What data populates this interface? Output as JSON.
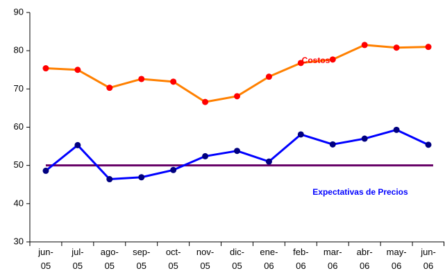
{
  "chart_data": {
    "type": "line",
    "categories": [
      "jun-05",
      "jul-05",
      "ago-05",
      "sep-05",
      "oct-05",
      "nov-05",
      "dic-05",
      "ene-06",
      "feb-06",
      "mar-06",
      "abr-06",
      "may-06",
      "jun-06"
    ],
    "series": [
      {
        "name": "Costos",
        "color": "#ff8000",
        "marker_color": "#ff0000",
        "label_color": "#ff0000",
        "values": [
          75.4,
          75.0,
          70.3,
          72.6,
          71.9,
          66.6,
          68.1,
          73.2,
          76.8,
          77.7,
          81.5,
          80.8,
          81.0
        ]
      },
      {
        "name": "Expectativas de Precios",
        "color": "#0000ff",
        "marker_color": "#000080",
        "label_color": "#0000ff",
        "values": [
          48.6,
          55.3,
          46.4,
          46.9,
          48.8,
          52.4,
          53.8,
          51.0,
          58.1,
          55.5,
          57.0,
          59.3,
          55.4
        ]
      }
    ],
    "reference_line": {
      "value": 50,
      "color": "#660066"
    },
    "ylim": [
      30,
      90
    ],
    "yticks": [
      30,
      40,
      50,
      60,
      70,
      80,
      90
    ],
    "grid": false
  }
}
